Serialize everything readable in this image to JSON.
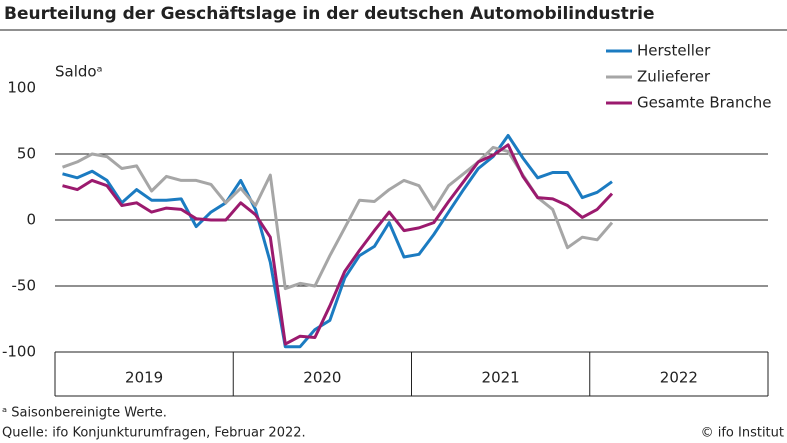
{
  "chart_data": {
    "type": "line",
    "title": "Beurteilung der Geschäftslage in der deutschen Automobilindustrie",
    "y_label": "Saldoᵃ",
    "footnote": "ᵃ Saisonbereinigte Werte.",
    "source": "Quelle: ifo Konjunkturumfragen, Februar 2022.",
    "copyright": "© ifo Institut",
    "x": [
      2019.042,
      2019.125,
      2019.208,
      2019.292,
      2019.375,
      2019.458,
      2019.542,
      2019.625,
      2019.708,
      2019.792,
      2019.875,
      2019.958,
      2020.042,
      2020.125,
      2020.208,
      2020.292,
      2020.375,
      2020.458,
      2020.542,
      2020.625,
      2020.708,
      2020.792,
      2020.875,
      2020.958,
      2021.042,
      2021.125,
      2021.208,
      2021.292,
      2021.375,
      2021.458,
      2021.542,
      2021.625,
      2021.708,
      2021.792,
      2021.875,
      2021.958,
      2022.042,
      2022.125
    ],
    "xlim": [
      2019,
      2023
    ],
    "xticks": [
      {
        "value": 2019.5,
        "label": "2019"
      },
      {
        "value": 2020.5,
        "label": "2020"
      },
      {
        "value": 2021.5,
        "label": "2021"
      },
      {
        "value": 2022.5,
        "label": "2022"
      }
    ],
    "ylim": [
      -100,
      100
    ],
    "yticks": [
      100,
      50,
      0,
      -50,
      -100
    ],
    "grid": true,
    "legend": "top-right",
    "series": [
      {
        "name": "Hersteller",
        "color": "#1b7bc1",
        "values": [
          35,
          32,
          37,
          30,
          13,
          23,
          15,
          15,
          16,
          -5,
          6,
          13,
          30,
          8,
          -32,
          -96,
          -96,
          -83,
          -76,
          -44,
          -27,
          -20,
          -2,
          -28,
          -26,
          -11,
          6,
          23,
          39,
          48,
          64,
          47,
          32,
          36,
          36,
          17,
          21,
          29
        ]
      },
      {
        "name": "Zulieferer",
        "color": "#a6a6a6",
        "values": [
          40,
          44,
          50,
          48,
          39,
          41,
          22,
          33,
          30,
          30,
          27,
          13,
          24,
          11,
          34,
          -52,
          -48,
          -50,
          -27,
          -6,
          15,
          14,
          23,
          30,
          26,
          8,
          26,
          35,
          44,
          55,
          52,
          34,
          17,
          8,
          -21,
          -13,
          -15,
          -2
        ]
      },
      {
        "name": "Gesamte Branche",
        "color": "#9b1a6e",
        "values": [
          26,
          23,
          30,
          26,
          11,
          13,
          6,
          9,
          8,
          1,
          0,
          0,
          13,
          4,
          -13,
          -94,
          -88,
          -89,
          -65,
          -39,
          -23,
          -8,
          6,
          -8,
          -6,
          -2,
          14,
          29,
          44,
          49,
          57,
          33,
          17,
          16,
          11,
          2,
          8,
          20
        ]
      }
    ]
  }
}
